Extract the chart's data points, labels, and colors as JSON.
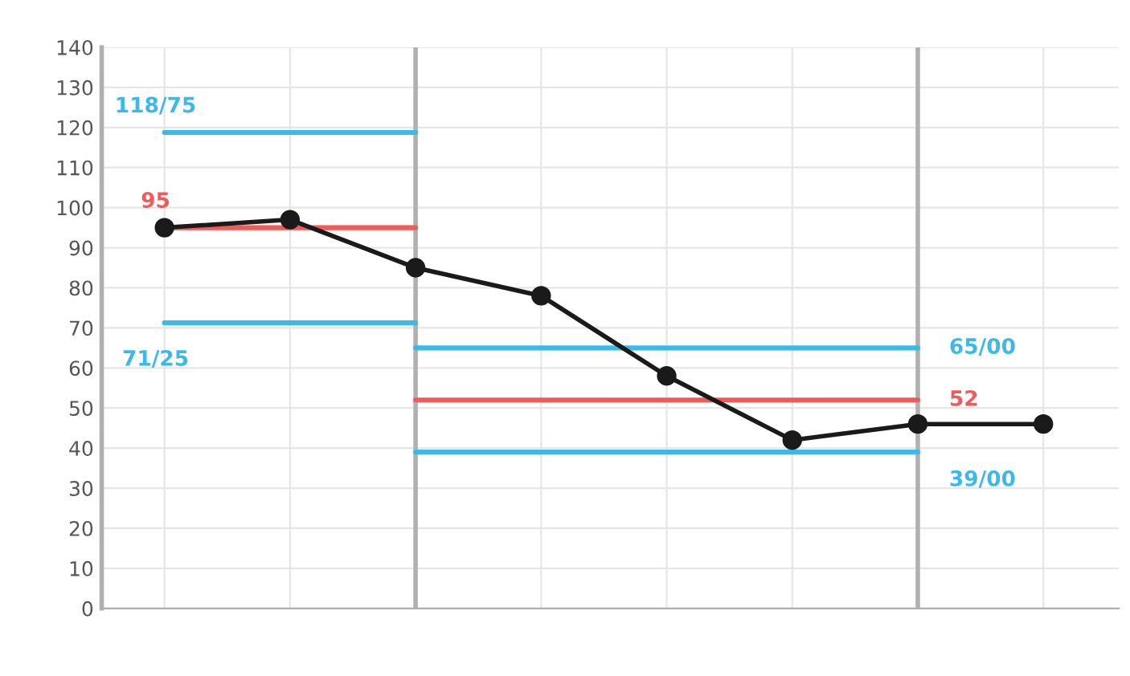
{
  "chart_data": {
    "type": "line",
    "categories": [
      null,
      null,
      null,
      null,
      null,
      null,
      null,
      null
    ],
    "ylim": [
      0,
      140
    ],
    "yticks": [
      0,
      10,
      20,
      30,
      40,
      50,
      60,
      70,
      80,
      90,
      100,
      110,
      120,
      130,
      140
    ],
    "grid": true,
    "series": [
      {
        "color": "#1a1a1a",
        "marker": "circle",
        "values": [
          95,
          97,
          85,
          78,
          58,
          42,
          46,
          46
        ]
      },
      {
        "name": "118/75",
        "color": "#3db8ea",
        "marker": "none",
        "values": [
          118.75,
          118.75,
          118.75,
          null,
          null,
          null,
          null,
          null
        ]
      },
      {
        "name": "95",
        "color": "#f05a5a",
        "marker": "none",
        "values": [
          95,
          95,
          95,
          null,
          null,
          null,
          null,
          null
        ]
      },
      {
        "name": "71/25",
        "color": "#3db8ea",
        "marker": "none",
        "values": [
          71.25,
          71.25,
          71.25,
          null,
          null,
          null,
          null,
          null
        ]
      },
      {
        "name": "65/00",
        "color": "#3db8ea",
        "marker": "none",
        "values": [
          null,
          null,
          65,
          65,
          65,
          65,
          65,
          null
        ]
      },
      {
        "name": "52",
        "color": "#f05a5a",
        "marker": "none",
        "values": [
          null,
          null,
          52,
          52,
          52,
          52,
          52,
          null
        ]
      },
      {
        "name": "39/00",
        "color": "#3db8ea",
        "marker": "none",
        "values": [
          null,
          null,
          39,
          39,
          39,
          39,
          39,
          null
        ]
      }
    ]
  }
}
